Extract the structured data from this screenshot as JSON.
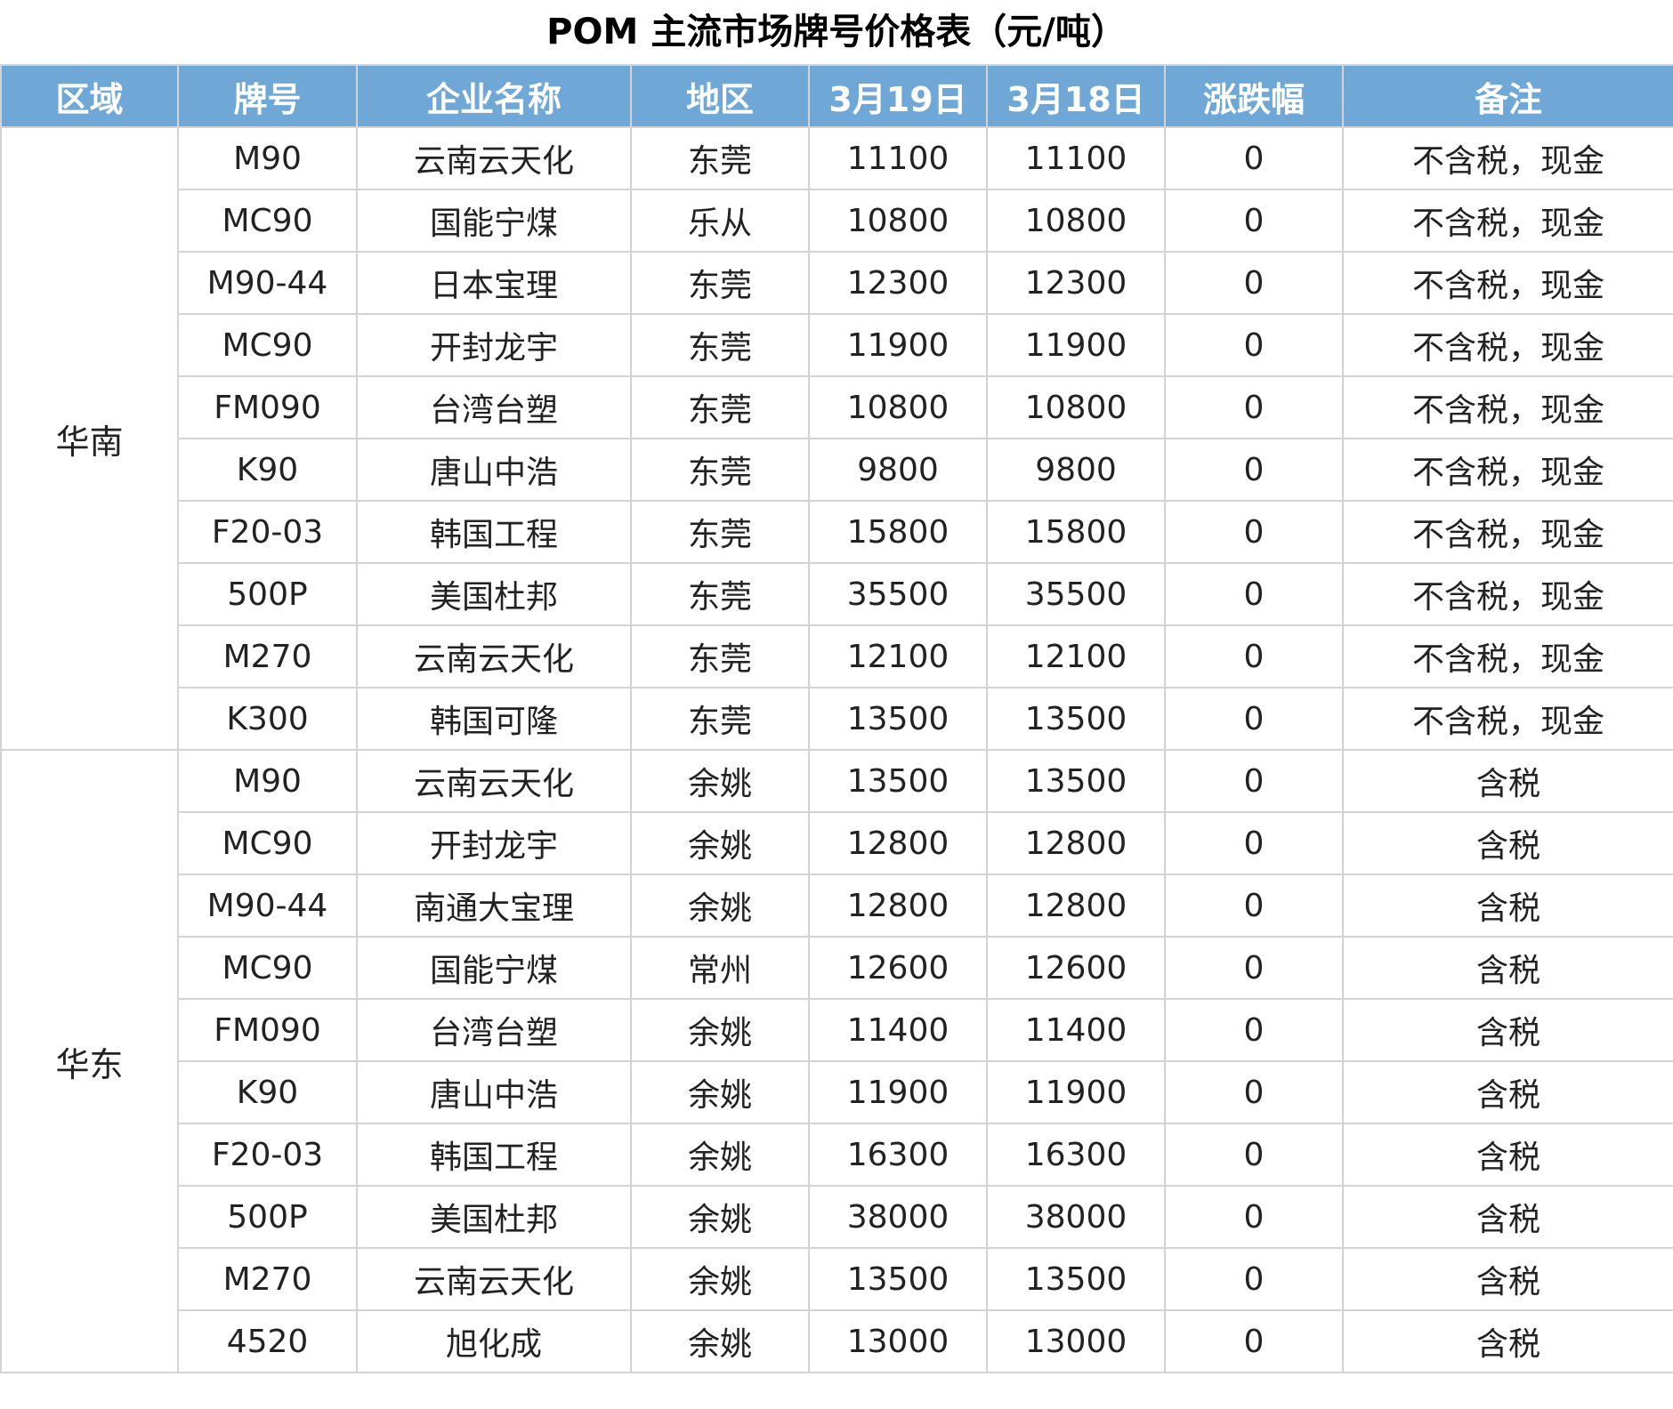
{
  "title": "POM 主流市场牌号价格表（元/吨）",
  "headers": [
    "区域",
    "牌号",
    "企业名称",
    "地区",
    "3月19日",
    "3月18日",
    "涨跌幅",
    "备注"
  ],
  "header_color": "#6fa8d7",
  "groups": [
    {
      "region": "华南",
      "rows": [
        [
          "M90",
          "云南云天化",
          "东莞",
          "11100",
          "11100",
          "0",
          "不含税，现金"
        ],
        [
          "MC90",
          "国能宁煤",
          "乐从",
          "10800",
          "10800",
          "0",
          "不含税，现金"
        ],
        [
          "M90-44",
          "日本宝理",
          "东莞",
          "12300",
          "12300",
          "0",
          "不含税，现金"
        ],
        [
          "MC90",
          "开封龙宇",
          "东莞",
          "11900",
          "11900",
          "0",
          "不含税，现金"
        ],
        [
          "FM090",
          "台湾台塑",
          "东莞",
          "10800",
          "10800",
          "0",
          "不含税，现金"
        ],
        [
          "K90",
          "唐山中浩",
          "东莞",
          "9800",
          "9800",
          "0",
          "不含税，现金"
        ],
        [
          "F20-03",
          "韩国工程",
          "东莞",
          "15800",
          "15800",
          "0",
          "不含税，现金"
        ],
        [
          "500P",
          "美国杜邦",
          "东莞",
          "35500",
          "35500",
          "0",
          "不含税，现金"
        ],
        [
          "M270",
          "云南云天化",
          "东莞",
          "12100",
          "12100",
          "0",
          "不含税，现金"
        ],
        [
          "K300",
          "韩国可隆",
          "东莞",
          "13500",
          "13500",
          "0",
          "不含税，现金"
        ]
      ]
    },
    {
      "region": "华东",
      "rows": [
        [
          "M90",
          "云南云天化",
          "余姚",
          "13500",
          "13500",
          "0",
          "含税"
        ],
        [
          "MC90",
          "开封龙宇",
          "余姚",
          "12800",
          "12800",
          "0",
          "含税"
        ],
        [
          "M90-44",
          "南通大宝理",
          "余姚",
          "12800",
          "12800",
          "0",
          "含税"
        ],
        [
          "MC90",
          "国能宁煤",
          "常州",
          "12600",
          "12600",
          "0",
          "含税"
        ],
        [
          "FM090",
          "台湾台塑",
          "余姚",
          "11400",
          "11400",
          "0",
          "含税"
        ],
        [
          "K90",
          "唐山中浩",
          "余姚",
          "11900",
          "11900",
          "0",
          "含税"
        ],
        [
          "F20-03",
          "韩国工程",
          "余姚",
          "16300",
          "16300",
          "0",
          "含税"
        ],
        [
          "500P",
          "美国杜邦",
          "余姚",
          "38000",
          "38000",
          "0",
          "含税"
        ],
        [
          "M270",
          "云南云天化",
          "余姚",
          "13500",
          "13500",
          "0",
          "含税"
        ],
        [
          "4520",
          "旭化成",
          "余姚",
          "13000",
          "13000",
          "0",
          "含税"
        ]
      ]
    }
  ]
}
